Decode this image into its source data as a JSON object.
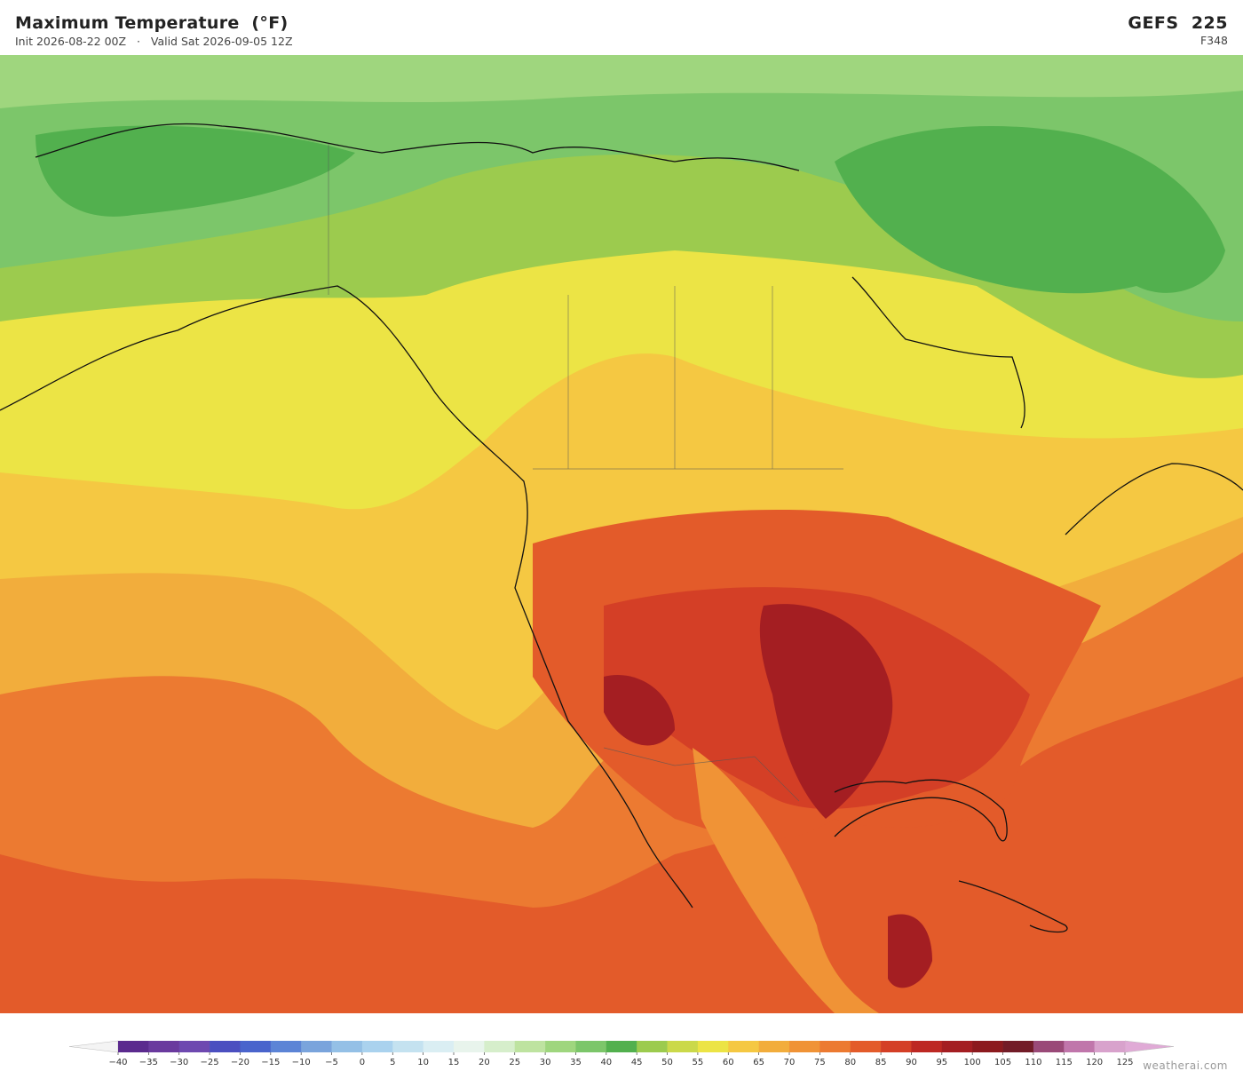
{
  "header": {
    "title": "Maximum Temperature  (°F)",
    "init": "Init 2026-08-22 00Z",
    "separator": "·",
    "valid": "Valid Sat 2026-09-05 12Z",
    "model": "GEFS  225",
    "forecast_hour": "F348"
  },
  "colorbar": {
    "ticks": [
      {
        "value": -40,
        "label": "−40"
      },
      {
        "value": -35,
        "label": "−35"
      },
      {
        "value": -30,
        "label": "−30"
      },
      {
        "value": -25,
        "label": "−25"
      },
      {
        "value": -20,
        "label": "−20"
      },
      {
        "value": -15,
        "label": "−15"
      },
      {
        "value": -10,
        "label": "−10"
      },
      {
        "value": -5,
        "label": "−5"
      },
      0,
      5,
      10,
      15,
      20,
      25,
      30,
      35,
      40,
      45,
      50,
      55,
      60,
      65,
      70,
      75,
      80,
      85,
      90,
      95,
      100,
      105,
      110,
      115,
      120,
      125
    ],
    "colors": [
      "#5b2a8e",
      "#6a3a9e",
      "#6e49b0",
      "#4b4fc0",
      "#4a64cc",
      "#5c84d6",
      "#7aa4dc",
      "#94c0e6",
      "#aad2ee",
      "#c4e2f0",
      "#daeef3",
      "#e8f4ec",
      "#d6eecb",
      "#bee3a0",
      "#9fd67e",
      "#7cc66a",
      "#52b04e",
      "#9ccb4e",
      "#cbd94a",
      "#ece445",
      "#f5c842",
      "#f2ad3c",
      "#f09336",
      "#ec7a31",
      "#e35b2a",
      "#d43f26",
      "#bd2823",
      "#a41e22",
      "#8c1a1e",
      "#721c27",
      "#9a4a78",
      "#c076ab",
      "#d8a2cc"
    ],
    "under_color": "#f4f4f4",
    "over_color": "#e0aad6"
  },
  "footer": {
    "watermark": "weatherai.com"
  }
}
